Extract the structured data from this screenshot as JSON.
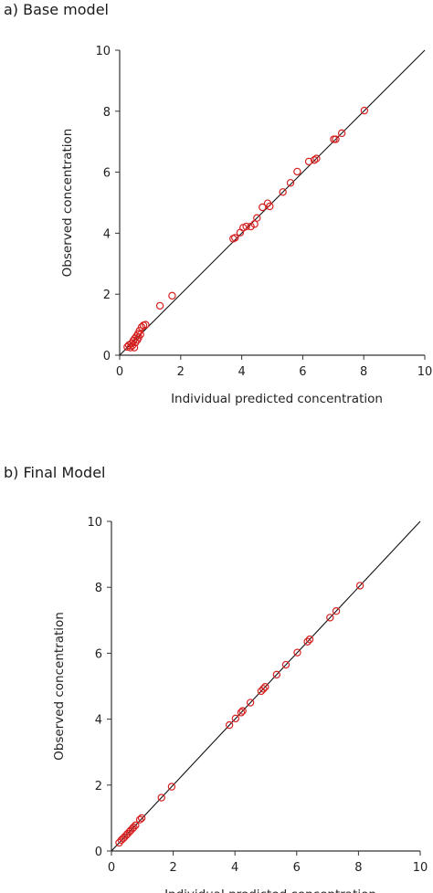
{
  "chart_data": [
    {
      "type": "scatter",
      "panel_title": "a) Base model",
      "xlabel": "Individual predicted concentration",
      "ylabel": "Observed concentration",
      "xlim": [
        0,
        10
      ],
      "ylim": [
        0,
        10
      ],
      "xticks": [
        "0",
        "2",
        "4",
        "6",
        "8",
        "10"
      ],
      "yticks": [
        "0",
        "2",
        "4",
        "6",
        "8",
        "10"
      ],
      "identity_line": true,
      "marker_color": "#d62020",
      "grid": false,
      "points": [
        {
          "x": 0.25,
          "y": 0.27
        },
        {
          "x": 0.3,
          "y": 0.33
        },
        {
          "x": 0.35,
          "y": 0.25
        },
        {
          "x": 0.38,
          "y": 0.38
        },
        {
          "x": 0.42,
          "y": 0.32
        },
        {
          "x": 0.45,
          "y": 0.48
        },
        {
          "x": 0.48,
          "y": 0.25
        },
        {
          "x": 0.5,
          "y": 0.55
        },
        {
          "x": 0.52,
          "y": 0.42
        },
        {
          "x": 0.55,
          "y": 0.62
        },
        {
          "x": 0.58,
          "y": 0.5
        },
        {
          "x": 0.6,
          "y": 0.7
        },
        {
          "x": 0.62,
          "y": 0.58
        },
        {
          "x": 0.65,
          "y": 0.8
        },
        {
          "x": 0.68,
          "y": 0.68
        },
        {
          "x": 0.72,
          "y": 0.92
        },
        {
          "x": 0.78,
          "y": 0.98
        },
        {
          "x": 0.85,
          "y": 1.0
        },
        {
          "x": 1.32,
          "y": 1.62
        },
        {
          "x": 1.72,
          "y": 1.95
        },
        {
          "x": 3.72,
          "y": 3.82
        },
        {
          "x": 3.78,
          "y": 3.85
        },
        {
          "x": 3.95,
          "y": 4.02
        },
        {
          "x": 4.05,
          "y": 4.18
        },
        {
          "x": 4.15,
          "y": 4.22
        },
        {
          "x": 4.3,
          "y": 4.22
        },
        {
          "x": 4.42,
          "y": 4.3
        },
        {
          "x": 4.5,
          "y": 4.5
        },
        {
          "x": 4.68,
          "y": 4.85
        },
        {
          "x": 4.85,
          "y": 4.98
        },
        {
          "x": 4.92,
          "y": 4.88
        },
        {
          "x": 5.35,
          "y": 5.35
        },
        {
          "x": 5.6,
          "y": 5.65
        },
        {
          "x": 5.82,
          "y": 6.02
        },
        {
          "x": 6.2,
          "y": 6.35
        },
        {
          "x": 6.38,
          "y": 6.4
        },
        {
          "x": 6.45,
          "y": 6.45
        },
        {
          "x": 7.02,
          "y": 7.08
        },
        {
          "x": 7.08,
          "y": 7.08
        },
        {
          "x": 7.28,
          "y": 7.28
        },
        {
          "x": 8.02,
          "y": 8.02
        }
      ]
    },
    {
      "type": "scatter",
      "panel_title": "b) Final Model",
      "xlabel": "Individual predicted concentration",
      "ylabel": "Observed concentration",
      "xlim": [
        0,
        10
      ],
      "ylim": [
        0,
        10
      ],
      "xticks": [
        "0",
        "2",
        "4",
        "6",
        "8",
        "10"
      ],
      "yticks": [
        "0",
        "2",
        "4",
        "6",
        "8",
        "10"
      ],
      "identity_line": true,
      "marker_color": "#d62020",
      "grid": false,
      "points": [
        {
          "x": 0.25,
          "y": 0.25
        },
        {
          "x": 0.32,
          "y": 0.33
        },
        {
          "x": 0.38,
          "y": 0.38
        },
        {
          "x": 0.42,
          "y": 0.42
        },
        {
          "x": 0.48,
          "y": 0.48
        },
        {
          "x": 0.52,
          "y": 0.52
        },
        {
          "x": 0.58,
          "y": 0.58
        },
        {
          "x": 0.62,
          "y": 0.62
        },
        {
          "x": 0.68,
          "y": 0.68
        },
        {
          "x": 0.72,
          "y": 0.72
        },
        {
          "x": 0.78,
          "y": 0.78
        },
        {
          "x": 0.92,
          "y": 0.95
        },
        {
          "x": 0.98,
          "y": 1.0
        },
        {
          "x": 1.62,
          "y": 1.62
        },
        {
          "x": 1.95,
          "y": 1.95
        },
        {
          "x": 3.82,
          "y": 3.82
        },
        {
          "x": 4.02,
          "y": 4.02
        },
        {
          "x": 4.2,
          "y": 4.2
        },
        {
          "x": 4.25,
          "y": 4.25
        },
        {
          "x": 4.5,
          "y": 4.5
        },
        {
          "x": 4.85,
          "y": 4.85
        },
        {
          "x": 4.92,
          "y": 4.92
        },
        {
          "x": 4.98,
          "y": 4.98
        },
        {
          "x": 5.35,
          "y": 5.35
        },
        {
          "x": 5.65,
          "y": 5.65
        },
        {
          "x": 6.02,
          "y": 6.02
        },
        {
          "x": 6.35,
          "y": 6.35
        },
        {
          "x": 6.42,
          "y": 6.42
        },
        {
          "x": 7.08,
          "y": 7.08
        },
        {
          "x": 7.28,
          "y": 7.28
        },
        {
          "x": 8.05,
          "y": 8.05
        }
      ]
    }
  ]
}
